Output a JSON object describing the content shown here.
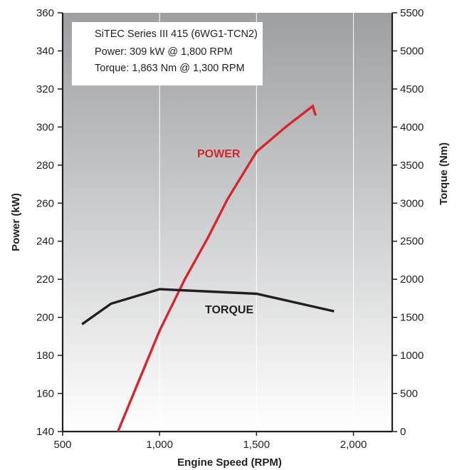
{
  "chart_data": {
    "type": "line",
    "info_box": [
      "SiTEC Series III 415 (6WG1-TCN2)",
      "Power: 309 kW @ 1,800 RPM",
      "Torque: 1,863 Nm @ 1,300 RPM"
    ],
    "xlabel": "Engine Speed (RPM)",
    "ylabel_left": "Power (kW)",
    "ylabel_right": "Torque (Nm)",
    "xlim": [
      500,
      2200
    ],
    "ylim_left": [
      140,
      360
    ],
    "ylim_right": [
      0,
      5500
    ],
    "x_ticks": [
      500,
      1000,
      1500,
      2000
    ],
    "x_tick_labels": [
      "500",
      "1,000",
      "1,500",
      "2,000"
    ],
    "y_left_ticks": [
      140,
      160,
      180,
      200,
      220,
      240,
      260,
      280,
      300,
      320,
      340,
      360
    ],
    "y_left_tick_labels": [
      "140",
      "160",
      "180",
      "200",
      "220",
      "240",
      "260",
      "280",
      "300",
      "320",
      "340",
      "360"
    ],
    "y_right_ticks": [
      0,
      500,
      1000,
      1500,
      2000,
      2500,
      3000,
      3500,
      4000,
      4500,
      5000,
      5500
    ],
    "y_right_tick_labels": [
      "0",
      "500",
      "1000",
      "1500",
      "2000",
      "2500",
      "3000",
      "3500",
      "4000",
      "4500",
      "5000",
      "5500"
    ],
    "grid": "vertical",
    "series": [
      {
        "name": "POWER",
        "axis": "left",
        "color": "#d7262b",
        "points": [
          [
            785,
            140
          ],
          [
            1000,
            193
          ],
          [
            1130,
            220
          ],
          [
            1250,
            242
          ],
          [
            1350,
            262
          ],
          [
            1500,
            287
          ],
          [
            1650,
            300
          ],
          [
            1790,
            311
          ],
          [
            1805,
            306
          ]
        ]
      },
      {
        "name": "TORQUE",
        "axis": "right",
        "color": "#231f20",
        "points": [
          [
            600,
            1410
          ],
          [
            750,
            1680
          ],
          [
            1000,
            1870
          ],
          [
            1500,
            1810
          ],
          [
            1900,
            1580
          ]
        ]
      }
    ]
  }
}
